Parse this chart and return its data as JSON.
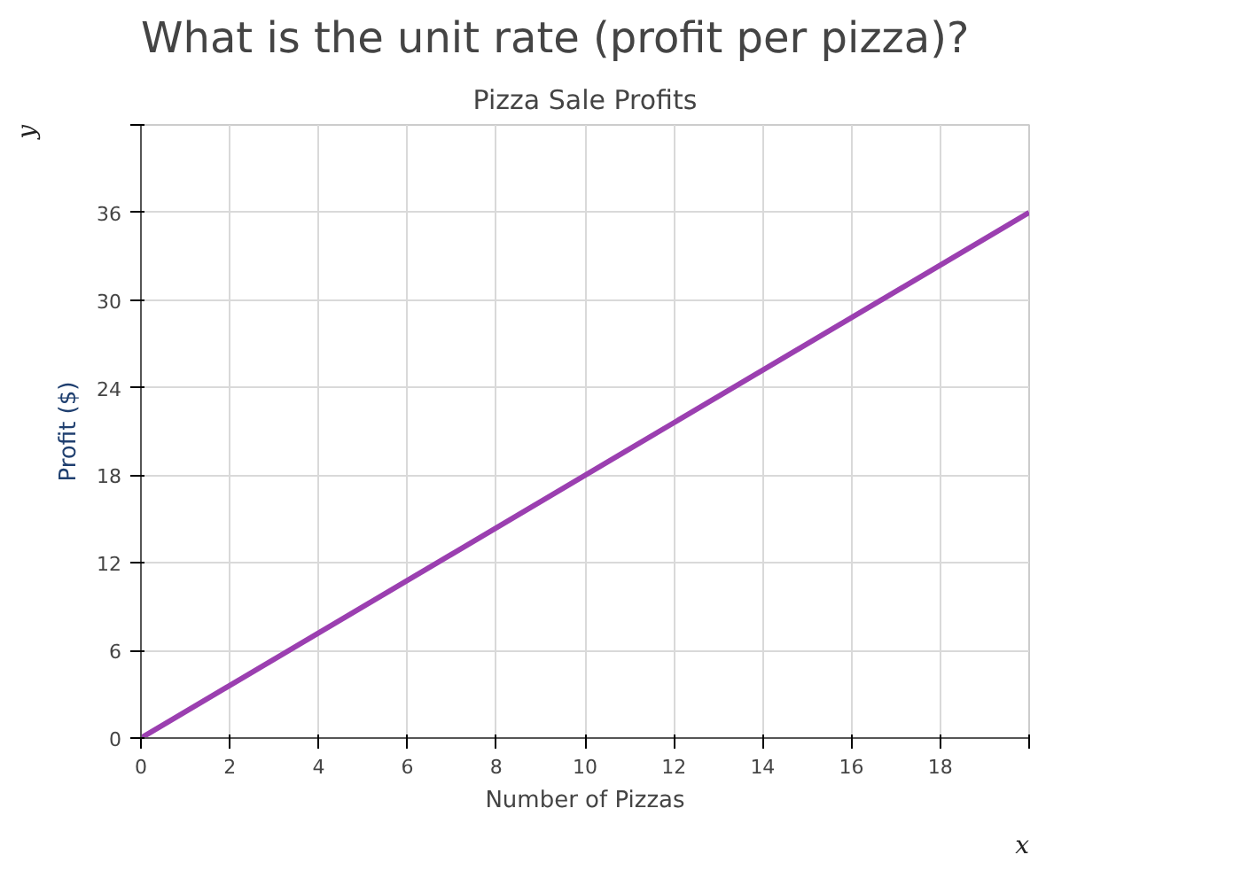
{
  "chart_data": {
    "type": "line",
    "title": "What is the unit rate (profit per pizza)?",
    "subtitle": "Pizza Sale Profits",
    "xlabel": "Number of Pizzas",
    "ylabel": "Profit ($)",
    "x": [
      0,
      20
    ],
    "series": [
      {
        "color": "#9b3fb0",
        "values": [
          0,
          36
        ]
      }
    ],
    "xlim": [
      0,
      20
    ],
    "ylim": [
      0,
      42
    ],
    "xticks": [
      0,
      2,
      4,
      6,
      8,
      10,
      12,
      14,
      16,
      18,
      {
        "value": 20,
        "label": null
      }
    ],
    "yticks": [
      0,
      6,
      12,
      18,
      24,
      30,
      36,
      {
        "value": 42,
        "label": null
      }
    ],
    "grid": true,
    "marker": "none",
    "line_style": "solid",
    "annotations": [
      "x",
      "y"
    ]
  }
}
